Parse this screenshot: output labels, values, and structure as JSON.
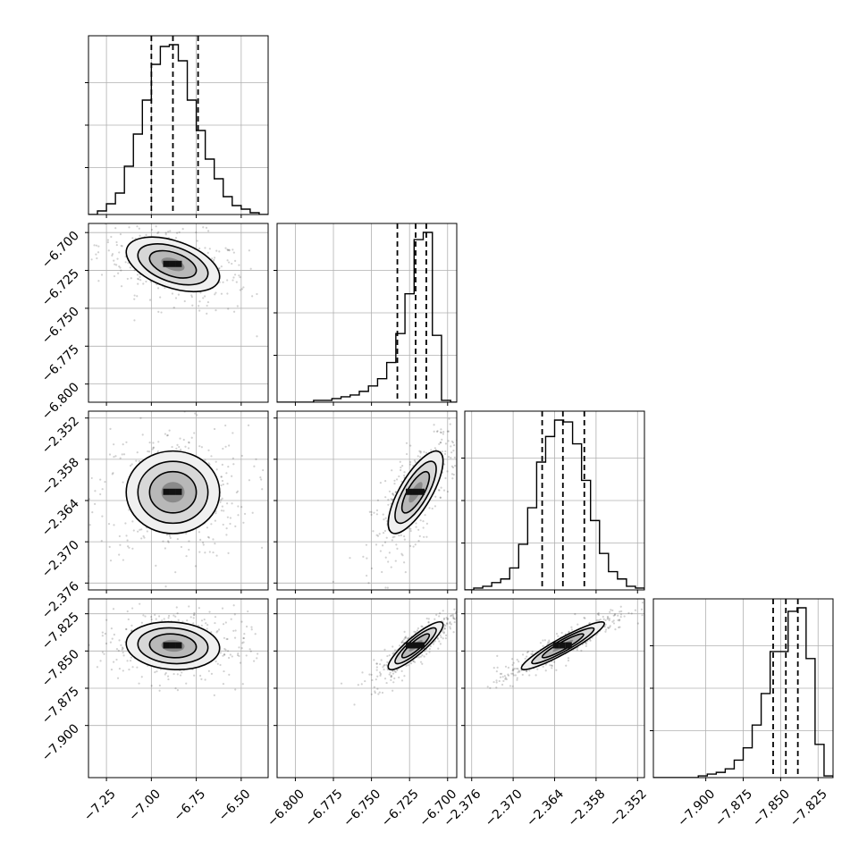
{
  "chart_data": {
    "type": "corner",
    "title": "",
    "grid": true,
    "parameters": [
      {
        "index": 0,
        "range": [
          -7.35,
          -6.35
        ],
        "ticks": [
          -7.25,
          -7.0,
          -6.75,
          -6.5
        ],
        "tick_labels": [
          "−7.25",
          "−7.00",
          "−6.75",
          "−6.50"
        ],
        "quantiles": [
          -7.0,
          -6.88,
          -6.74
        ],
        "mean": -6.88,
        "sd": 0.13
      },
      {
        "index": 1,
        "range": [
          -6.812,
          -6.694
        ],
        "ticks": [
          -6.8,
          -6.775,
          -6.75,
          -6.725,
          -6.7
        ],
        "tick_labels": [
          "−6.800",
          "−6.775",
          "−6.750",
          "−6.725",
          "−6.700"
        ],
        "quantiles": [
          -6.733,
          -6.721,
          -6.714
        ],
        "mean": -6.721,
        "sd": 0.009
      },
      {
        "index": 2,
        "range": [
          -2.377,
          -2.351
        ],
        "ticks": [
          -2.376,
          -2.37,
          -2.364,
          -2.358,
          -2.352
        ],
        "tick_labels": [
          "−2.376",
          "−2.370",
          "−2.364",
          "−2.358",
          "−2.352"
        ],
        "quantiles": [
          -2.3658,
          -2.3628,
          -2.3597
        ],
        "mean": -2.3628,
        "sd": 0.003
      },
      {
        "index": 3,
        "range": [
          -7.935,
          -7.815
        ],
        "ticks": [
          -7.9,
          -7.875,
          -7.85,
          -7.825
        ],
        "tick_labels": [
          "−7.900",
          "−7.875",
          "−7.850",
          "−7.825"
        ],
        "quantiles": [
          -7.855,
          -7.8465,
          -7.8385
        ],
        "mean": -7.8465,
        "sd": 0.008
      }
    ],
    "histograms": [
      {
        "param": 0,
        "bin_edges": [
          -7.35,
          -7.3,
          -7.25,
          -7.2,
          -7.15,
          -7.1,
          -7.05,
          -7.0,
          -6.95,
          -6.9,
          -6.85,
          -6.8,
          -6.75,
          -6.7,
          -6.65,
          -6.6,
          -6.55,
          -6.5,
          -6.45,
          -6.4,
          -6.35
        ],
        "counts": [
          0,
          2,
          6,
          12,
          27,
          45,
          64,
          84,
          94,
          95,
          86,
          64,
          47,
          31,
          20,
          10,
          5,
          3,
          1,
          0
        ]
      },
      {
        "param": 1,
        "bin_edges": [
          -6.812,
          -6.806,
          -6.8,
          -6.794,
          -6.788,
          -6.782,
          -6.776,
          -6.77,
          -6.764,
          -6.758,
          -6.752,
          -6.746,
          -6.74,
          -6.734,
          -6.728,
          -6.722,
          -6.716,
          -6.71,
          -6.704,
          -6.698,
          -6.694
        ],
        "counts": [
          0,
          0,
          0,
          0,
          1,
          1,
          2,
          3,
          4,
          6,
          9,
          13,
          22,
          38,
          60,
          90,
          94,
          37,
          1,
          0
        ]
      },
      {
        "param": 2,
        "bin_edges": [
          -2.377,
          -2.3757,
          -2.3744,
          -2.3731,
          -2.3718,
          -2.3705,
          -2.3692,
          -2.3679,
          -2.3666,
          -2.3653,
          -2.364,
          -2.3627,
          -2.3614,
          -2.3601,
          -2.3588,
          -2.3575,
          -2.3562,
          -2.3549,
          -2.3536,
          -2.3523,
          -2.351
        ],
        "counts": [
          0,
          1,
          2,
          4,
          6,
          12,
          25,
          45,
          70,
          84,
          93,
          92,
          80,
          60,
          38,
          20,
          10,
          6,
          2,
          1
        ]
      },
      {
        "param": 3,
        "bin_edges": [
          -7.935,
          -7.929,
          -7.923,
          -7.917,
          -7.911,
          -7.905,
          -7.899,
          -7.893,
          -7.887,
          -7.881,
          -7.875,
          -7.869,
          -7.863,
          -7.857,
          -7.851,
          -7.845,
          -7.839,
          -7.833,
          -7.827,
          -7.821,
          -7.815
        ],
        "counts": [
          0,
          0,
          0,
          0,
          0,
          1,
          2,
          3,
          5,
          10,
          17,
          30,
          48,
          72,
          72,
          95,
          97,
          68,
          19,
          1
        ]
      }
    ],
    "pairs": [
      {
        "x_param": 0,
        "y_param": 1,
        "rho": -0.45
      },
      {
        "x_param": 0,
        "y_param": 2,
        "rho": 0.0
      },
      {
        "x_param": 1,
        "y_param": 2,
        "rho": 0.75
      },
      {
        "x_param": 0,
        "y_param": 3,
        "rho": -0.1
      },
      {
        "x_param": 1,
        "y_param": 3,
        "rho": 0.88
      },
      {
        "x_param": 2,
        "y_param": 3,
        "rho": 0.93
      }
    ]
  }
}
